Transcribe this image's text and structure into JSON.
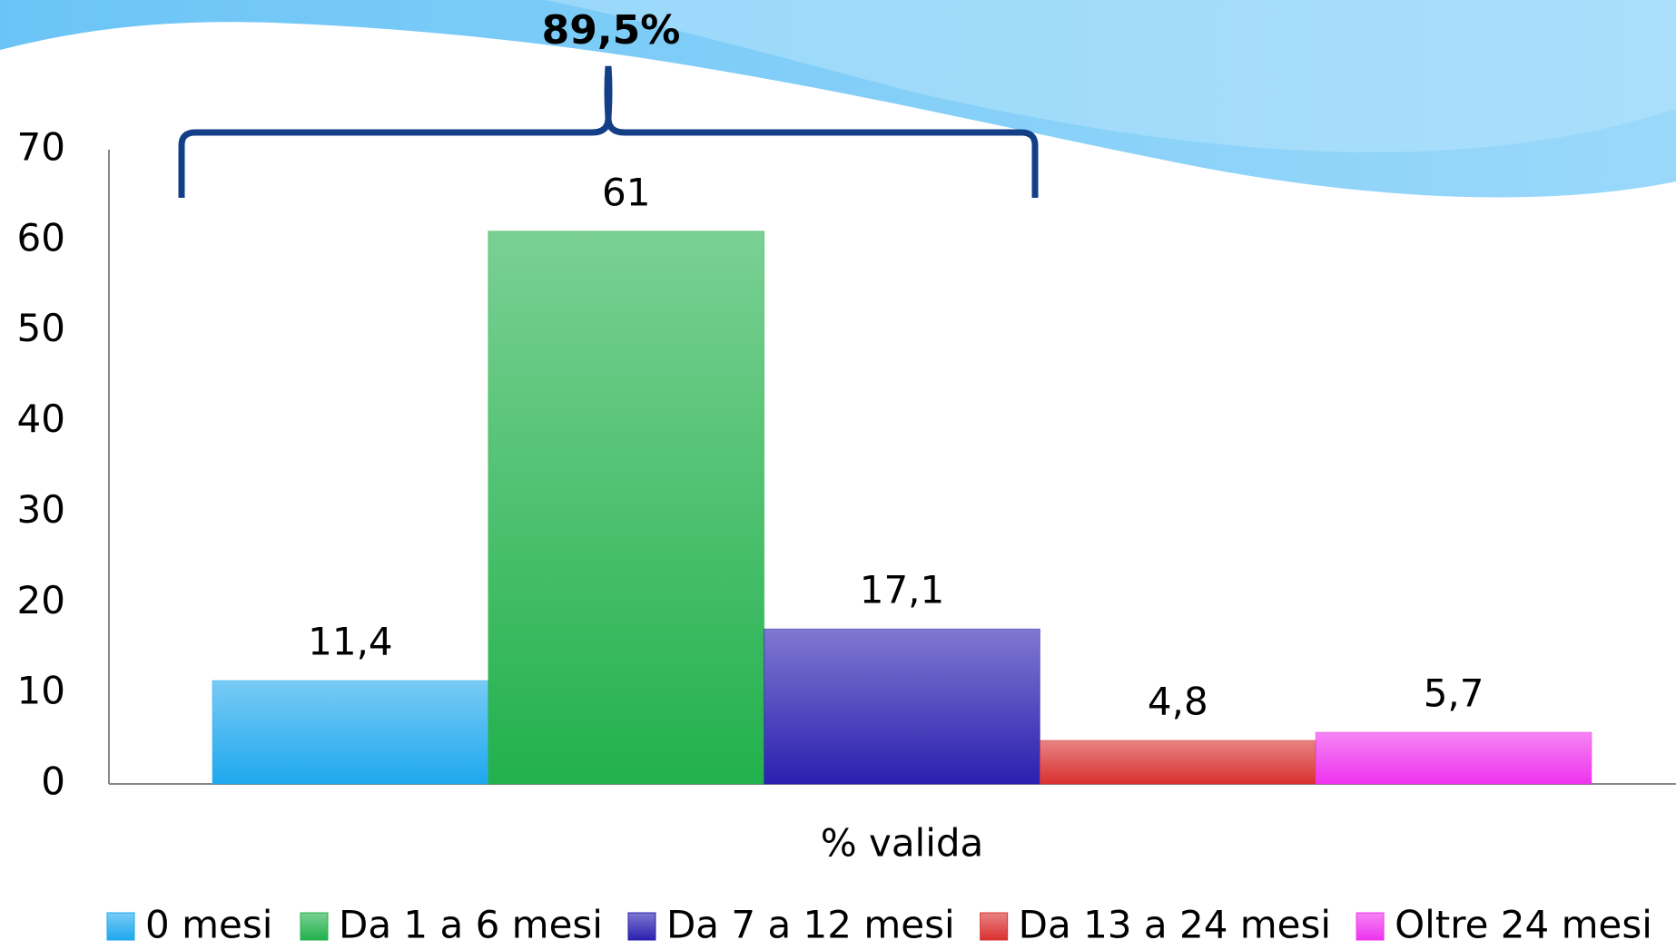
{
  "chart_data": {
    "type": "bar",
    "annotation": "89,5%",
    "categories": [
      "% valida"
    ],
    "series": [
      {
        "name": "0 mesi",
        "color": "#1ea8ee",
        "values": [
          11.4
        ],
        "value_labels": [
          "11,4"
        ]
      },
      {
        "name": "Da 1 a 6 mesi",
        "color": "#22b14c",
        "values": [
          61
        ],
        "value_labels": [
          "61"
        ]
      },
      {
        "name": "Da 7 a 12 mesi",
        "color": "#2a1fb0",
        "values": [
          17.1
        ],
        "value_labels": [
          "17,1"
        ]
      },
      {
        "name": "Da 13 a 24 mesi",
        "color": "#d93030",
        "values": [
          4.8
        ],
        "value_labels": [
          "4,8"
        ]
      },
      {
        "name": "Oltre 24 mesi",
        "color": "#ee33ee",
        "values": [
          5.7
        ],
        "value_labels": [
          "5,7"
        ]
      }
    ],
    "ylim": [
      0,
      70
    ],
    "yticks": [
      0,
      10,
      20,
      30,
      40,
      50,
      60,
      70
    ],
    "grid": false,
    "legend": "bottom"
  }
}
